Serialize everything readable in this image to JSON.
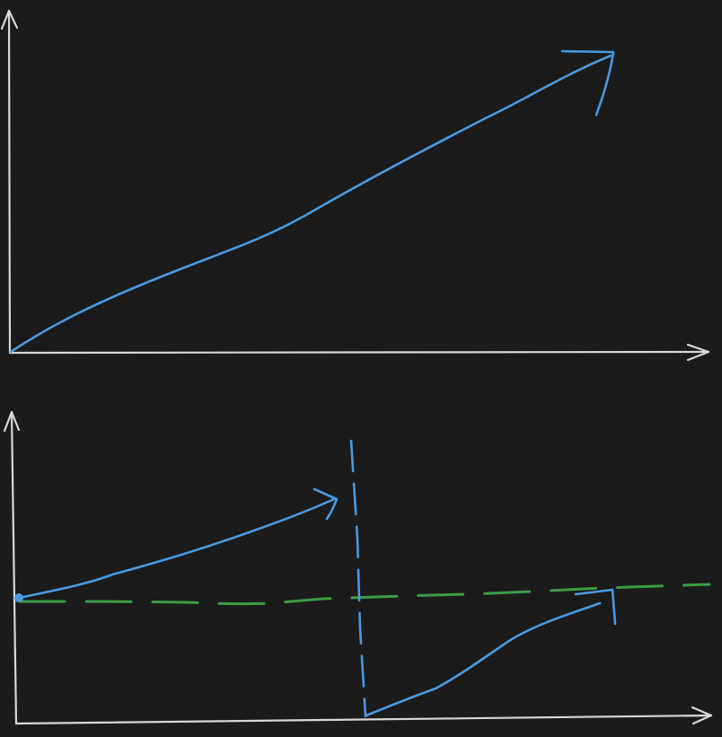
{
  "canvas": {
    "background": "#1b1b1b"
  },
  "colors": {
    "axis": "#d8d8d8",
    "line": "#4a9ae0",
    "baseline": "#3f9a48"
  },
  "figures": [
    {
      "id": "top",
      "description_shape": "monotonic increasing curve with arrowhead"
    },
    {
      "id": "bottom",
      "description_shape": "rising curve interrupted by vertical dashed line, drop to zero, then rising again toward dashed horizontal baseline"
    }
  ]
}
